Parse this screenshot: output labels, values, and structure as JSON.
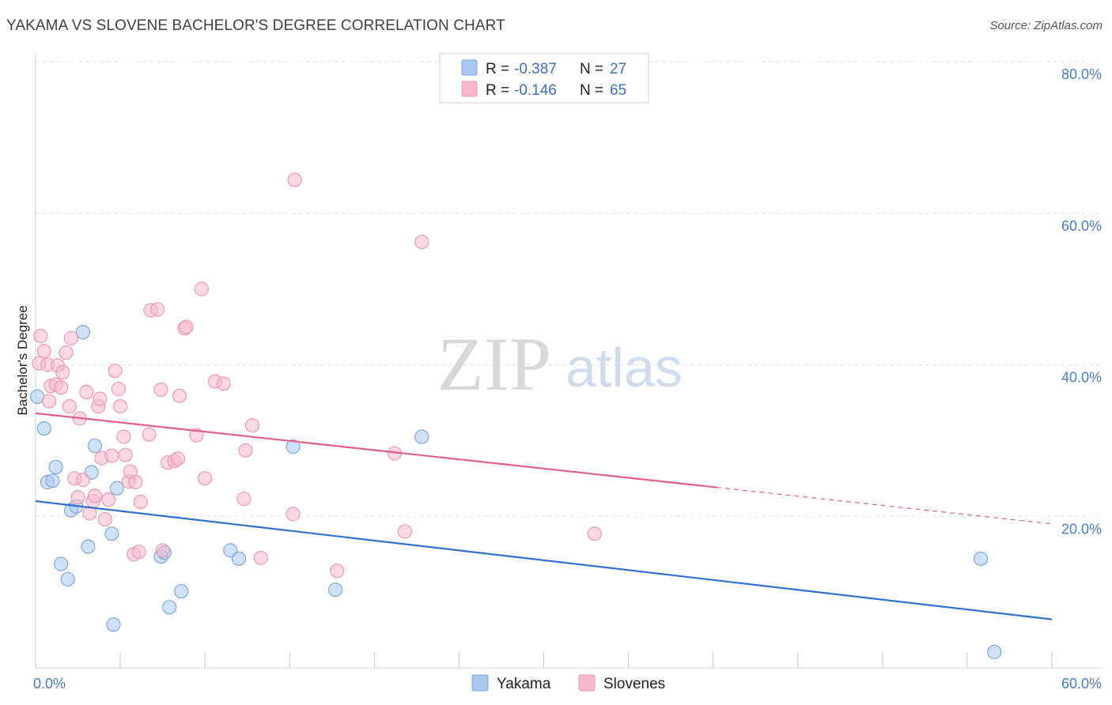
{
  "header": {
    "title": "YAKAMA VS SLOVENE BACHELOR'S DEGREE CORRELATION CHART",
    "source": "Source: ZipAtlas.com"
  },
  "watermark": {
    "part1": "ZIP",
    "part2": "atlas"
  },
  "legend_top": {
    "rows": [
      {
        "r_label": "R =",
        "r_value": "-0.387",
        "n_label": "N =",
        "n_value": "27",
        "color": "#a9c8f0"
      },
      {
        "r_label": "R =",
        "r_value": "-0.146",
        "n_label": "N =",
        "n_value": "65",
        "color": "#f7b8cb"
      }
    ]
  },
  "legend_bottom": {
    "items": [
      {
        "label": "Yakama",
        "color": "#a9c8f0"
      },
      {
        "label": "Slovenes",
        "color": "#f7b8cb"
      }
    ]
  },
  "chart_data": {
    "type": "scatter",
    "title": "YAKAMA VS SLOVENE BACHELOR'S DEGREE CORRELATION CHART",
    "xlabel": "",
    "ylabel": "Bachelor's Degree",
    "xlim": [
      0,
      60
    ],
    "ylim": [
      0,
      80
    ],
    "x_tick_labels": [
      "0.0%",
      "60.0%"
    ],
    "y_ticks": [
      20,
      40,
      60,
      80
    ],
    "y_tick_labels": [
      "20.0%",
      "40.0%",
      "60.0%",
      "80.0%"
    ],
    "grid": true,
    "series": [
      {
        "name": "Yakama",
        "color": "#a9c8f0",
        "edge": "#7ea7dc",
        "line_color": "#2f6fd0",
        "trend": {
          "x0": 0,
          "y0": 22.0,
          "x1": 60,
          "y1": 6.4,
          "dashed_from": null
        },
        "points": [
          [
            0.1,
            35.8
          ],
          [
            0.5,
            31.6
          ],
          [
            0.7,
            24.5
          ],
          [
            1.0,
            24.7
          ],
          [
            1.2,
            26.5
          ],
          [
            1.5,
            13.7
          ],
          [
            1.9,
            11.7
          ],
          [
            2.1,
            20.8
          ],
          [
            2.4,
            21.3
          ],
          [
            2.8,
            44.3
          ],
          [
            3.1,
            16.0
          ],
          [
            3.3,
            25.8
          ],
          [
            3.5,
            29.3
          ],
          [
            4.5,
            17.7
          ],
          [
            4.6,
            5.7
          ],
          [
            4.8,
            23.7
          ],
          [
            7.4,
            14.7
          ],
          [
            7.6,
            15.2
          ],
          [
            7.9,
            8.0
          ],
          [
            8.6,
            10.1
          ],
          [
            11.5,
            15.5
          ],
          [
            12.0,
            14.4
          ],
          [
            15.2,
            29.2
          ],
          [
            17.7,
            10.3
          ],
          [
            22.8,
            30.5
          ],
          [
            55.8,
            14.4
          ],
          [
            56.6,
            2.1
          ]
        ]
      },
      {
        "name": "Slovenes",
        "color": "#f7b8cb",
        "edge": "#e99ab1",
        "line_color": "#e0608a",
        "trend": {
          "x0": 0,
          "y0": 33.6,
          "x1": 60,
          "y1": 19.0,
          "dashed_from": 40.2
        },
        "points": [
          [
            0.2,
            40.2
          ],
          [
            0.3,
            43.8
          ],
          [
            0.5,
            41.8
          ],
          [
            0.7,
            40.0
          ],
          [
            0.8,
            35.2
          ],
          [
            0.9,
            37.2
          ],
          [
            1.2,
            37.4
          ],
          [
            1.3,
            39.9
          ],
          [
            1.5,
            37.0
          ],
          [
            1.6,
            39.0
          ],
          [
            1.8,
            41.6
          ],
          [
            2.0,
            34.5
          ],
          [
            2.1,
            43.5
          ],
          [
            2.3,
            25.0
          ],
          [
            2.5,
            22.5
          ],
          [
            2.6,
            32.9
          ],
          [
            2.8,
            24.8
          ],
          [
            3.0,
            36.4
          ],
          [
            3.2,
            20.4
          ],
          [
            3.4,
            22.0
          ],
          [
            3.5,
            22.7
          ],
          [
            3.7,
            34.5
          ],
          [
            3.8,
            35.5
          ],
          [
            3.9,
            27.7
          ],
          [
            4.1,
            19.6
          ],
          [
            4.3,
            22.2
          ],
          [
            4.5,
            28.0
          ],
          [
            4.7,
            39.2
          ],
          [
            4.9,
            36.8
          ],
          [
            5.0,
            34.5
          ],
          [
            5.2,
            30.5
          ],
          [
            5.3,
            28.1
          ],
          [
            5.5,
            24.6
          ],
          [
            5.6,
            25.9
          ],
          [
            5.8,
            15.0
          ],
          [
            5.9,
            24.5
          ],
          [
            6.1,
            15.3
          ],
          [
            6.2,
            21.9
          ],
          [
            6.7,
            30.8
          ],
          [
            6.8,
            47.2
          ],
          [
            7.2,
            47.3
          ],
          [
            7.4,
            36.7
          ],
          [
            7.5,
            15.5
          ],
          [
            7.8,
            27.1
          ],
          [
            8.2,
            27.3
          ],
          [
            8.4,
            27.6
          ],
          [
            8.5,
            35.9
          ],
          [
            8.8,
            44.8
          ],
          [
            8.9,
            45.0
          ],
          [
            9.5,
            30.7
          ],
          [
            9.8,
            50.0
          ],
          [
            10.0,
            25.0
          ],
          [
            10.6,
            37.8
          ],
          [
            11.1,
            37.5
          ],
          [
            12.3,
            22.3
          ],
          [
            12.4,
            28.7
          ],
          [
            12.8,
            32.0
          ],
          [
            13.3,
            14.5
          ],
          [
            15.2,
            20.3
          ],
          [
            15.3,
            64.4
          ],
          [
            17.8,
            12.8
          ],
          [
            21.2,
            28.3
          ],
          [
            21.8,
            18.0
          ],
          [
            22.8,
            56.2
          ],
          [
            33.0,
            17.7
          ]
        ]
      }
    ]
  }
}
